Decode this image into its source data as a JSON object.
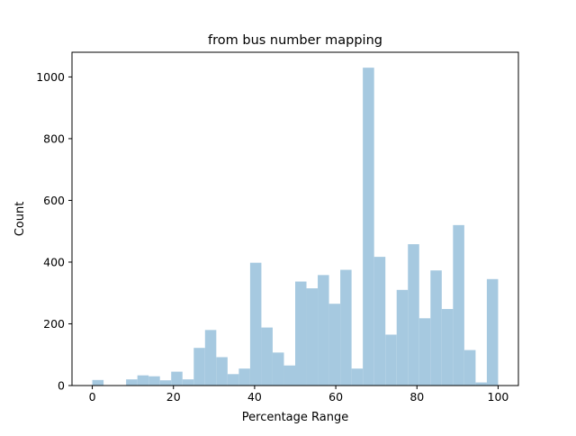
{
  "chart_data": {
    "type": "bar",
    "title": "from bus number mapping",
    "xlabel": "Percentage Range",
    "ylabel": "Count",
    "xlim": [
      -5,
      105
    ],
    "ylim": [
      0,
      1080
    ],
    "xticks": [
      0,
      20,
      40,
      60,
      80,
      100
    ],
    "yticks": [
      0,
      200,
      400,
      600,
      800,
      1000
    ],
    "grid": false,
    "bar_color": "#a6c9e0",
    "bins": [
      {
        "x0": 0.0,
        "x1": 2.5,
        "value": 18
      },
      {
        "x0": 2.5,
        "x1": 5.0,
        "value": 0
      },
      {
        "x0": 5.0,
        "x1": 7.5,
        "value": 0
      },
      {
        "x0": 7.5,
        "x1": 10.0,
        "value": 20
      },
      {
        "x0": 10.0,
        "x1": 12.5,
        "value": 33
      },
      {
        "x0": 12.5,
        "x1": 15.0,
        "value": 30
      },
      {
        "x0": 15.0,
        "x1": 17.5,
        "value": 17
      },
      {
        "x0": 17.5,
        "x1": 20.0,
        "value": 45
      },
      {
        "x0": 20.0,
        "x1": 22.5,
        "value": 20
      },
      {
        "x0": 22.5,
        "x1": 25.0,
        "value": 122
      },
      {
        "x0": 25.0,
        "x1": 27.5,
        "value": 180
      },
      {
        "x0": 27.5,
        "x1": 30.0,
        "value": 92
      },
      {
        "x0": 30.0,
        "x1": 32.5,
        "value": 37
      },
      {
        "x0": 32.5,
        "x1": 35.0,
        "value": 55
      },
      {
        "x0": 35.0,
        "x1": 37.5,
        "value": 398
      },
      {
        "x0": 37.5,
        "x1": 40.0,
        "value": 188
      },
      {
        "x0": 40.0,
        "x1": 42.5,
        "value": 107
      },
      {
        "x0": 42.5,
        "x1": 45.0,
        "value": 65
      },
      {
        "x0": 45.0,
        "x1": 47.5,
        "value": 337
      },
      {
        "x0": 47.5,
        "x1": 50.0,
        "value": 315
      },
      {
        "x0": 50.0,
        "x1": 52.5,
        "value": 358
      },
      {
        "x0": 52.5,
        "x1": 55.0,
        "value": 265
      },
      {
        "x0": 55.0,
        "x1": 57.5,
        "value": 375
      },
      {
        "x0": 57.5,
        "x1": 60.0,
        "value": 55
      },
      {
        "x0": 60.0,
        "x1": 62.5,
        "value": 1030
      },
      {
        "x0": 62.5,
        "x1": 65.0,
        "value": 417
      },
      {
        "x0": 65.0,
        "x1": 67.5,
        "value": 165
      },
      {
        "x0": 67.5,
        "x1": 70.0,
        "value": 310
      },
      {
        "x0": 70.0,
        "x1": 72.5,
        "value": 458
      },
      {
        "x0": 72.5,
        "x1": 75.0,
        "value": 218
      },
      {
        "x0": 75.0,
        "x1": 77.5,
        "value": 373
      },
      {
        "x0": 77.5,
        "x1": 80.0,
        "value": 248
      },
      {
        "x0": 80.0,
        "x1": 82.5,
        "value": 520
      },
      {
        "x0": 82.5,
        "x1": 85.0,
        "value": 115
      },
      {
        "x0": 85.0,
        "x1": 87.5,
        "value": 10
      },
      {
        "x0": 87.5,
        "x1": 90.0,
        "value": 345
      }
    ]
  }
}
